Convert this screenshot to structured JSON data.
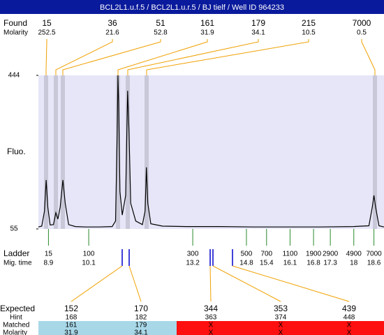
{
  "header": {
    "title": "BCL2L1.u.f.5 / BCL2L1.u.r.5 / BJ tielf / Well ID 964233"
  },
  "found": {
    "label": "Found",
    "sublabel": "Molarity",
    "sizes": [
      15,
      36,
      51,
      161,
      179,
      215,
      7000
    ],
    "molarity": [
      252.5,
      21.6,
      52.8,
      31.9,
      34.1,
      10.5,
      0.5
    ]
  },
  "chart_data": {
    "type": "line",
    "y_label": "Fluo.",
    "ylim": [
      55,
      444
    ],
    "yticks": [
      55,
      444
    ],
    "xlim": [
      8.6,
      18.9
    ],
    "color": "#000000",
    "x": [
      8.6,
      8.7,
      8.78,
      8.83,
      8.88,
      8.95,
      9.05,
      9.12,
      9.18,
      9.25,
      9.33,
      9.4,
      9.5,
      9.7,
      10.0,
      10.4,
      10.8,
      10.9,
      10.95,
      10.97,
      10.99,
      11.03,
      11.1,
      11.2,
      11.26,
      11.3,
      11.35,
      11.5,
      11.7,
      11.78,
      11.82,
      11.86,
      11.95,
      12.3,
      13,
      14,
      15,
      16,
      17,
      18,
      18.45,
      18.55,
      18.6,
      18.65,
      18.75,
      18.9
    ],
    "values": [
      60,
      62,
      100,
      179,
      110,
      65,
      66,
      96,
      80,
      110,
      179,
      120,
      66,
      61,
      60,
      60,
      61,
      75,
      300,
      444,
      380,
      150,
      90,
      140,
      405,
      300,
      120,
      75,
      66,
      100,
      211,
      120,
      68,
      62,
      61,
      61,
      60,
      60,
      60,
      61,
      63,
      110,
      140,
      110,
      63,
      60
    ]
  },
  "ladder": {
    "label": "Ladder",
    "sublabel": "Mig. time",
    "sizes": [
      15,
      100,
      300,
      500,
      700,
      1100,
      1900,
      2900,
      4900,
      7000
    ],
    "times": [
      8.9,
      10.1,
      13.2,
      14.8,
      15.4,
      16.1,
      16.8,
      17.3,
      18,
      18.6
    ]
  },
  "expected": {
    "label": "Expected",
    "hint_label": "Hint",
    "matched_label": "Matched",
    "molarity_label": "Molarity",
    "sizes": [
      152,
      170,
      344,
      353,
      439
    ],
    "hint": [
      168,
      182,
      363,
      374,
      448
    ],
    "matched": [
      "161",
      "179",
      "X",
      "X",
      "X"
    ],
    "molarity": [
      "31.9",
      "34.1",
      "X",
      "X",
      "X"
    ]
  }
}
